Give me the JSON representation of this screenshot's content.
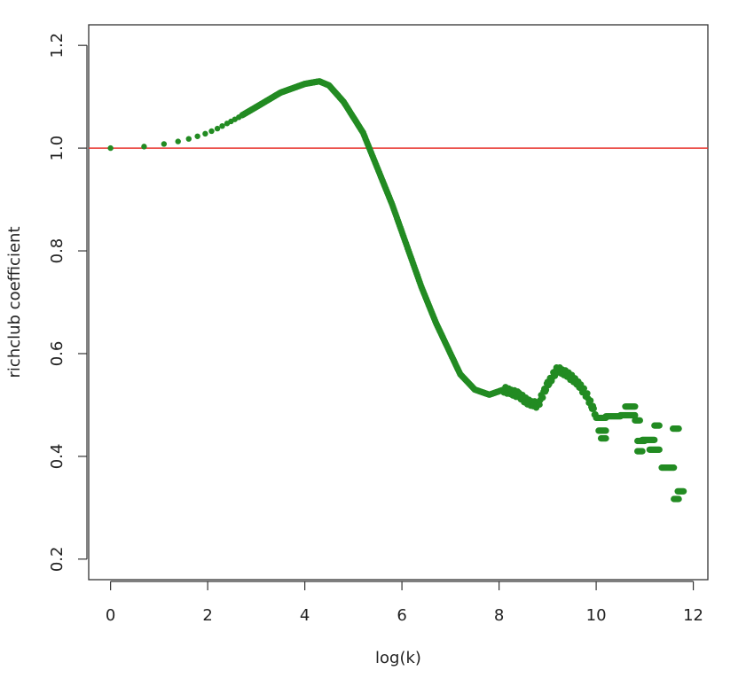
{
  "chart_data": {
    "type": "scatter",
    "title": "",
    "xlabel": "log(k)",
    "ylabel": "richclub coefficient",
    "xlim": [
      -0.45,
      12.3
    ],
    "ylim": [
      0.16,
      1.24
    ],
    "x_ticks": [
      0,
      2,
      4,
      6,
      8,
      10,
      12
    ],
    "y_ticks": [
      0.2,
      0.4,
      0.6,
      0.8,
      1.0,
      1.2
    ],
    "x_tick_labels": [
      "0",
      "2",
      "4",
      "6",
      "8",
      "10",
      "12"
    ],
    "y_tick_labels": [
      "0.2",
      "0.4",
      "0.6",
      "0.8",
      "1.0",
      "1.2"
    ],
    "grid": false,
    "reference_line": {
      "y": 1.0,
      "color": "#e8322c"
    },
    "series": [
      {
        "color": "#228B22",
        "sparse_points": [
          [
            0.0,
            1.0
          ],
          [
            0.69,
            1.003
          ],
          [
            1.1,
            1.008
          ],
          [
            1.39,
            1.013
          ],
          [
            1.61,
            1.018
          ],
          [
            1.79,
            1.023
          ],
          [
            1.95,
            1.028
          ],
          [
            2.08,
            1.033
          ],
          [
            2.2,
            1.038
          ],
          [
            2.3,
            1.043
          ],
          [
            2.4,
            1.048
          ],
          [
            2.48,
            1.052
          ],
          [
            2.56,
            1.056
          ],
          [
            2.64,
            1.06
          ],
          [
            2.71,
            1.064
          ]
        ],
        "curve_knots": [
          [
            2.71,
            1.064
          ],
          [
            3.0,
            1.08
          ],
          [
            3.5,
            1.108
          ],
          [
            4.0,
            1.125
          ],
          [
            4.3,
            1.13
          ],
          [
            4.5,
            1.122
          ],
          [
            4.8,
            1.09
          ],
          [
            5.2,
            1.03
          ],
          [
            5.5,
            0.96
          ],
          [
            5.8,
            0.89
          ],
          [
            6.1,
            0.81
          ],
          [
            6.4,
            0.73
          ],
          [
            6.7,
            0.66
          ],
          [
            7.0,
            0.6
          ],
          [
            7.2,
            0.56
          ],
          [
            7.5,
            0.53
          ],
          [
            7.8,
            0.52
          ],
          [
            8.1,
            0.53
          ],
          [
            8.4,
            0.52
          ],
          [
            8.6,
            0.505
          ],
          [
            8.8,
            0.5
          ],
          [
            9.0,
            0.54
          ],
          [
            9.2,
            0.57
          ],
          [
            9.4,
            0.56
          ],
          [
            9.6,
            0.545
          ],
          [
            9.8,
            0.52
          ],
          [
            10.0,
            0.48
          ]
        ],
        "tail_segments": [
          [
            10.0,
            10.2,
            0.475
          ],
          [
            10.05,
            10.2,
            0.45
          ],
          [
            10.1,
            10.2,
            0.435
          ],
          [
            10.2,
            10.5,
            0.478
          ],
          [
            10.5,
            10.8,
            0.48
          ],
          [
            10.6,
            10.8,
            0.497
          ],
          [
            10.8,
            10.9,
            0.47
          ],
          [
            10.85,
            10.95,
            0.41
          ],
          [
            10.85,
            11.0,
            0.43
          ],
          [
            10.95,
            11.2,
            0.432
          ],
          [
            11.1,
            11.3,
            0.413
          ],
          [
            11.2,
            11.3,
            0.46
          ],
          [
            11.35,
            11.6,
            0.378
          ],
          [
            11.58,
            11.7,
            0.454
          ],
          [
            11.6,
            11.7,
            0.317
          ],
          [
            11.68,
            11.8,
            0.332
          ]
        ]
      }
    ]
  }
}
